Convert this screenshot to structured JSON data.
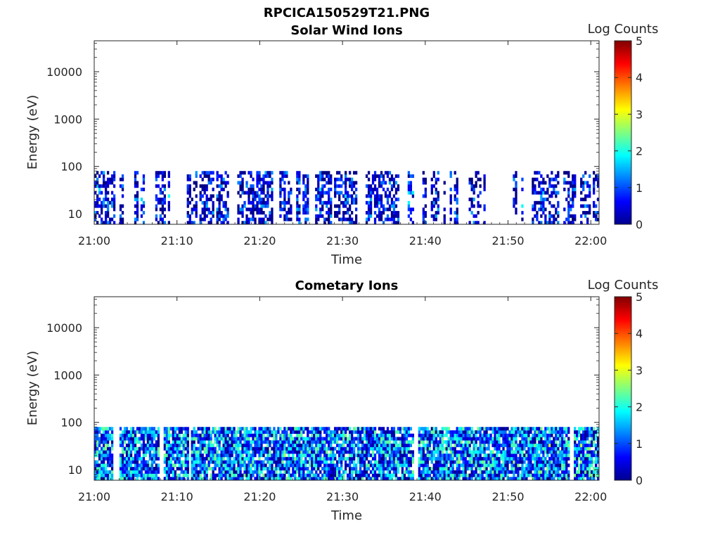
{
  "figure": {
    "title": "RPCICA150529T21.PNG"
  },
  "panels": [
    {
      "title": "Solar Wind Ions",
      "ylabel": "Energy (eV)",
      "xlabel": "Time",
      "colorbar_label": "Log Counts"
    },
    {
      "title": "Cometary Ions",
      "ylabel": "Energy (eV)",
      "xlabel": "Time",
      "colorbar_label": "Log Counts"
    }
  ],
  "chart_data": [
    {
      "type": "heatmap",
      "title": "Solar Wind Ions",
      "xlabel": "Time",
      "ylabel": "Energy (eV)",
      "x_range_minutes_after_21_00": [
        0,
        61
      ],
      "x_ticks": [
        "21:00",
        "21:10",
        "21:20",
        "21:30",
        "21:40",
        "21:50",
        "22:00"
      ],
      "y_scale": "log",
      "y_range": [
        6,
        45000
      ],
      "y_ticks": [
        10,
        100,
        1000,
        10000
      ],
      "y_tick_labels": [
        "10",
        "100",
        "1000",
        "10000"
      ],
      "data_energy_range": [
        6,
        80
      ],
      "colorscale": "jet",
      "color_range": [
        0,
        5
      ],
      "colorbar_ticks": [
        "0",
        "1",
        "2",
        "3",
        "4",
        "5"
      ],
      "colorbar_label": "Log Counts",
      "typical_log_counts": [
        0,
        1.5
      ],
      "coverage": "sparse"
    },
    {
      "type": "heatmap",
      "title": "Cometary Ions",
      "xlabel": "Time",
      "ylabel": "Energy (eV)",
      "x_range_minutes_after_21_00": [
        0,
        61
      ],
      "x_ticks": [
        "21:00",
        "21:10",
        "21:20",
        "21:30",
        "21:40",
        "21:50",
        "22:00"
      ],
      "y_scale": "log",
      "y_range": [
        6,
        45000
      ],
      "y_ticks": [
        10,
        100,
        1000,
        10000
      ],
      "y_tick_labels": [
        "10",
        "100",
        "1000",
        "10000"
      ],
      "data_energy_range": [
        6,
        80
      ],
      "colorscale": "jet",
      "color_range": [
        0,
        5
      ],
      "colorbar_ticks": [
        "0",
        "1",
        "2",
        "3",
        "4",
        "5"
      ],
      "colorbar_label": "Log Counts",
      "typical_log_counts": [
        0,
        2.5
      ],
      "coverage": "dense"
    }
  ]
}
